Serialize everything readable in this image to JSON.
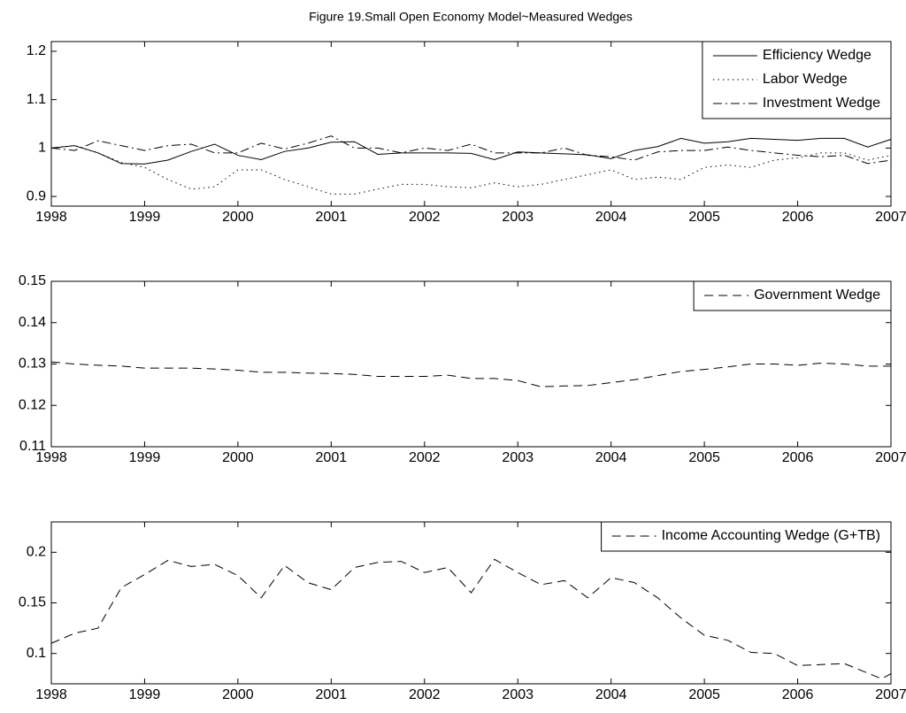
{
  "title": "Figure 19.Small Open Economy Model~Measured Wedges",
  "chart_data": [
    {
      "type": "line",
      "x": [
        1998,
        1998.25,
        1998.5,
        1998.75,
        1999,
        1999.25,
        1999.5,
        1999.75,
        2000,
        2000.25,
        2000.5,
        2000.75,
        2001,
        2001.25,
        2001.5,
        2001.75,
        2002,
        2002.25,
        2002.5,
        2002.75,
        2003,
        2003.25,
        2003.5,
        2003.75,
        2004,
        2004.25,
        2004.5,
        2004.75,
        2005,
        2005.25,
        2005.5,
        2005.75,
        2006,
        2006.25,
        2006.5,
        2006.75,
        2007
      ],
      "series": [
        {
          "name": "Efficiency Wedge",
          "color": "#000000",
          "linestyle": "solid",
          "values": [
            1.0,
            1.005,
            0.99,
            0.968,
            0.967,
            0.975,
            0.993,
            1.008,
            0.985,
            0.976,
            0.993,
            1.0,
            1.012,
            1.013,
            0.987,
            0.99,
            0.99,
            0.99,
            0.989,
            0.976,
            0.992,
            0.99,
            0.988,
            0.986,
            0.978,
            0.995,
            1.003,
            1.02,
            1.01,
            1.013,
            1.02,
            1.018,
            1.016,
            1.02,
            1.02,
            1.002,
            1.018
          ]
        },
        {
          "name": "Labor Wedge",
          "color": "#000000",
          "linestyle": "dotted",
          "values": [
            1.0,
            1.005,
            0.99,
            0.97,
            0.96,
            0.935,
            0.915,
            0.92,
            0.955,
            0.955,
            0.935,
            0.92,
            0.905,
            0.905,
            0.915,
            0.925,
            0.925,
            0.92,
            0.918,
            0.928,
            0.92,
            0.925,
            0.935,
            0.945,
            0.955,
            0.935,
            0.94,
            0.935,
            0.96,
            0.965,
            0.96,
            0.975,
            0.98,
            0.99,
            0.99,
            0.975,
            0.985
          ]
        },
        {
          "name": "Investment Wedge",
          "color": "#000000",
          "linestyle": "dashdot",
          "values": [
            1.0,
            0.995,
            1.015,
            1.005,
            0.995,
            1.005,
            1.008,
            0.99,
            0.99,
            1.01,
            0.998,
            1.01,
            1.025,
            1.0,
            1.0,
            0.99,
            1.0,
            0.995,
            1.008,
            0.99,
            0.99,
            0.99,
            1.0,
            0.985,
            0.982,
            0.975,
            0.992,
            0.995,
            0.995,
            1.002,
            0.995,
            0.99,
            0.985,
            0.982,
            0.985,
            0.968,
            0.975
          ]
        }
      ],
      "xlim": [
        1998,
        2007
      ],
      "xticks": [
        1998,
        1999,
        2000,
        2001,
        2002,
        2003,
        2004,
        2005,
        2006,
        2007
      ],
      "ylim": [
        0.88,
        1.22
      ],
      "yticks": [
        0.9,
        1,
        1.1,
        1.2
      ],
      "legend": "upper right"
    },
    {
      "type": "line",
      "x": [
        1998,
        1998.25,
        1998.5,
        1998.75,
        1999,
        1999.25,
        1999.5,
        1999.75,
        2000,
        2000.25,
        2000.5,
        2000.75,
        2001,
        2001.25,
        2001.5,
        2001.75,
        2002,
        2002.25,
        2002.5,
        2002.75,
        2003,
        2003.25,
        2003.5,
        2003.75,
        2004,
        2004.25,
        2004.5,
        2004.75,
        2005,
        2005.25,
        2005.5,
        2005.75,
        2006,
        2006.25,
        2006.5,
        2006.75,
        2007
      ],
      "series": [
        {
          "name": "Government Wedge",
          "color": "#000000",
          "linestyle": "dashed",
          "values": [
            0.1305,
            0.13,
            0.1297,
            0.1295,
            0.129,
            0.129,
            0.129,
            0.1288,
            0.1285,
            0.128,
            0.128,
            0.1278,
            0.1277,
            0.1275,
            0.127,
            0.127,
            0.127,
            0.1273,
            0.1265,
            0.1265,
            0.126,
            0.1245,
            0.1247,
            0.1248,
            0.1255,
            0.1262,
            0.1272,
            0.1282,
            0.1287,
            0.1293,
            0.13,
            0.13,
            0.1297,
            0.1302,
            0.13,
            0.1295,
            0.1295
          ]
        }
      ],
      "xlim": [
        1998,
        2007
      ],
      "xticks": [
        1998,
        1999,
        2000,
        2001,
        2002,
        2003,
        2004,
        2005,
        2006,
        2007
      ],
      "ylim": [
        0.11,
        0.15
      ],
      "yticks": [
        0.11,
        0.12,
        0.13,
        0.14,
        0.15
      ],
      "legend": "upper right"
    },
    {
      "type": "line",
      "x": [
        1998,
        1998.25,
        1998.5,
        1998.75,
        1999,
        1999.25,
        1999.5,
        1999.75,
        2000,
        2000.25,
        2000.5,
        2000.75,
        2001,
        2001.25,
        2001.5,
        2001.75,
        2002,
        2002.25,
        2002.5,
        2002.75,
        2003,
        2003.25,
        2003.5,
        2003.75,
        2004,
        2004.25,
        2004.5,
        2004.75,
        2005,
        2005.25,
        2005.5,
        2005.75,
        2006,
        2006.25,
        2006.5,
        2006.9,
        2007
      ],
      "series": [
        {
          "name": "Income Accounting Wedge (G+TB)",
          "color": "#000000",
          "linestyle": "dashed",
          "values": [
            0.11,
            0.12,
            0.125,
            0.165,
            0.178,
            0.192,
            0.186,
            0.188,
            0.177,
            0.155,
            0.187,
            0.17,
            0.163,
            0.185,
            0.19,
            0.191,
            0.18,
            0.185,
            0.16,
            0.193,
            0.18,
            0.168,
            0.172,
            0.155,
            0.175,
            0.17,
            0.155,
            0.135,
            0.118,
            0.113,
            0.101,
            0.1,
            0.088,
            0.089,
            0.09,
            0.075,
            0.08
          ]
        }
      ],
      "xlim": [
        1998,
        2007
      ],
      "xticks": [
        1998,
        1999,
        2000,
        2001,
        2002,
        2003,
        2004,
        2005,
        2006,
        2007
      ],
      "ylim": [
        0.07,
        0.23
      ],
      "yticks": [
        0.1,
        0.15,
        0.2
      ],
      "legend": "upper right"
    }
  ]
}
